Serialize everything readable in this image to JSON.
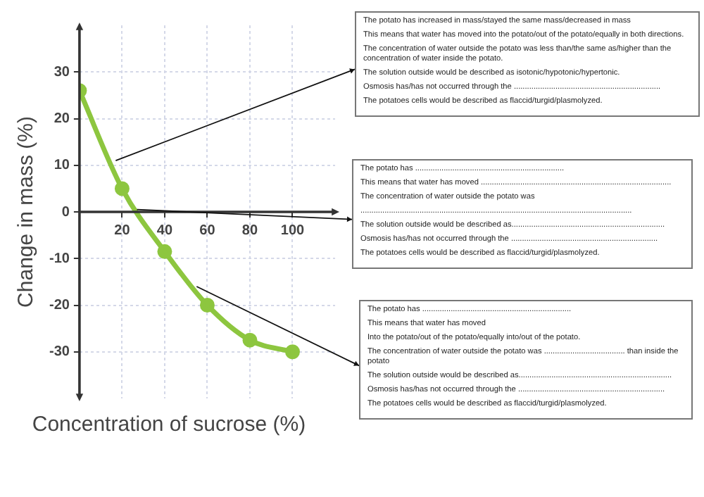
{
  "chart_data": {
    "type": "line",
    "xlabel": "Concentration of sucrose (%)",
    "ylabel": "Change in mass (%)",
    "x": [
      0,
      20,
      40,
      60,
      80,
      100
    ],
    "series": [
      {
        "color": "#8dc63f",
        "values": [
          26,
          5,
          -8.5,
          -20,
          -27.5,
          -30
        ]
      }
    ],
    "xlim": [
      0,
      120
    ],
    "xticks": [
      20,
      40,
      60,
      80,
      100
    ],
    "ylim": [
      -40,
      40
    ],
    "yticks": [
      -30,
      -20,
      -10,
      0,
      10,
      20,
      30
    ],
    "grid": true,
    "legend": false,
    "marker": "circle",
    "line_style": "solid",
    "annotations": [
      {
        "text": "The potato has increased in mass/stayed the same mass/decreased in mass\nThis means that water has moved into the potato/out of the potato/equally in both directions.\nThe concentration of water outside the potato was less than/the same as/higher than the concentration of water inside the potato.\nThe solution outside would be described as isotonic/hypotonic/hypertonic.\nOsmosis has/has not occurred through the ...................................................................\nThe potatoes cells would be described as flaccid/turgid/plasmolyzed.",
        "x": 17,
        "y": 11
      },
      {
        "text": "The potato has ....................................................................\nThis means that water has moved .......................................................................................\nThe concentration of water outside the potato was\n............................................................................................................................\nThe solution outside would be described as......................................................................\nOsmosis has/has not occurred through the ...................................................................\nThe potatoes cells would be described as flaccid/turgid/plasmolyzed.",
        "x": 27,
        "y": 0.5
      },
      {
        "text": "The potato has ....................................................................\nThis means that water has moved\nInto the potato/out of the potato/equally into/out of the potato.\nThe concentration of water outside the potato was ..................................... than inside the potato\nThe solution outside would be described as......................................................................\nOsmosis has/has not occurred through the ...................................................................\nThe potatoes cells would be described as flaccid/turgid/plasmolyzed.",
        "x": 55,
        "y": -16
      }
    ]
  }
}
